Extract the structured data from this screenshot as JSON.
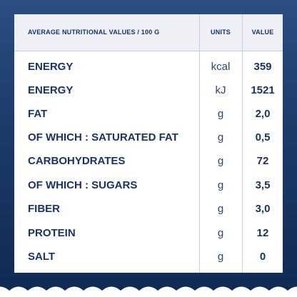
{
  "table": {
    "headers": {
      "name": "AVERAGE NUTRITIONAL VALUES / 100 G",
      "units": "UNITS",
      "value": "VALUE"
    },
    "rows": [
      {
        "name": "ENERGY",
        "unit": "kcal",
        "value": "359"
      },
      {
        "name": "ENERGY",
        "unit": "kJ",
        "value": "1521"
      },
      {
        "name": "FAT",
        "unit": "g",
        "value": "2,0"
      },
      {
        "name": "OF WHICH : SATURATED FAT",
        "unit": "g",
        "value": "0,5"
      },
      {
        "name": "CARBOHYDRATES",
        "unit": "g",
        "value": "72"
      },
      {
        "name": "OF WHICH : SUGARS",
        "unit": "g",
        "value": "3,5"
      },
      {
        "name": "FIBER",
        "unit": "g",
        "value": "3,0"
      },
      {
        "name": "PROTEIN",
        "unit": "g",
        "value": "12"
      },
      {
        "name": "SALT",
        "unit": "g",
        "value": "0"
      }
    ]
  },
  "colors": {
    "text": "#17336a",
    "background_top": "#2a4f82",
    "background_bottom": "#0f2a52",
    "header_fill": "#eef0f6"
  }
}
